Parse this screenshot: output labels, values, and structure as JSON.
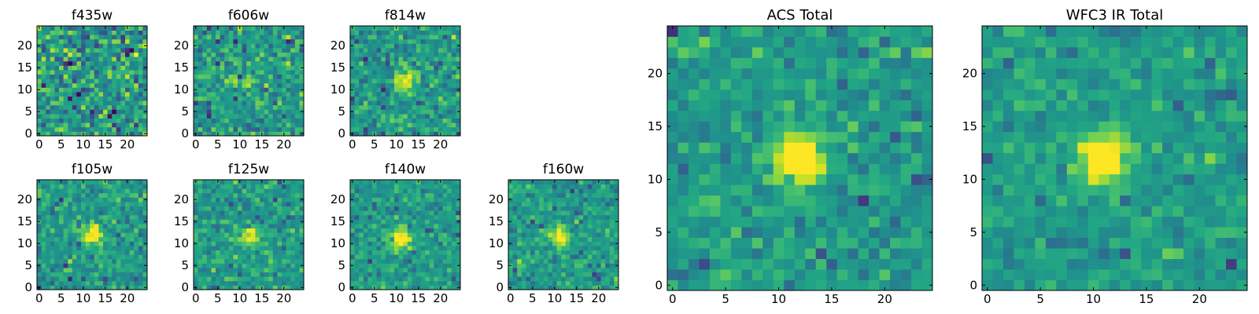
{
  "chart_data": [
    {
      "type": "heatmap",
      "title": "f435w",
      "xticks": [
        0,
        5,
        10,
        15,
        20
      ],
      "yticks": [
        0,
        5,
        10,
        15,
        20
      ],
      "grid_size": 25,
      "xlim": [
        0,
        25
      ],
      "ylim": [
        0,
        25
      ],
      "grid": false,
      "colormap": "viridis",
      "source_center": [
        12,
        13
      ],
      "source_strength": 0.05,
      "noise": 0.95
    },
    {
      "type": "heatmap",
      "title": "f606w",
      "xticks": [
        0,
        5,
        10,
        15,
        20
      ],
      "yticks": [
        0,
        5,
        10,
        15,
        20
      ],
      "grid_size": 25,
      "xlim": [
        0,
        25
      ],
      "ylim": [
        0,
        25
      ],
      "grid": false,
      "colormap": "viridis",
      "source_center": [
        12,
        12
      ],
      "source_strength": 0.25,
      "noise": 0.8
    },
    {
      "type": "heatmap",
      "title": "f814w",
      "xticks": [
        0,
        5,
        10,
        15,
        20
      ],
      "yticks": [
        0,
        5,
        10,
        15,
        20
      ],
      "grid_size": 25,
      "xlim": [
        0,
        25
      ],
      "ylim": [
        0,
        25
      ],
      "grid": false,
      "colormap": "viridis",
      "source_center": [
        12,
        12
      ],
      "source_strength": 0.4,
      "noise": 0.7
    },
    {
      "type": "heatmap",
      "title": "f105w",
      "xticks": [
        0,
        5,
        10,
        15,
        20
      ],
      "yticks": [
        0,
        5,
        10,
        15,
        20
      ],
      "grid_size": 25,
      "xlim": [
        0,
        25
      ],
      "ylim": [
        0,
        25
      ],
      "grid": false,
      "colormap": "viridis",
      "source_center": [
        12,
        12
      ],
      "source_strength": 0.5,
      "noise": 0.6
    },
    {
      "type": "heatmap",
      "title": "f125w",
      "xticks": [
        0,
        5,
        10,
        15,
        20
      ],
      "yticks": [
        0,
        5,
        10,
        15,
        20
      ],
      "grid_size": 25,
      "xlim": [
        0,
        25
      ],
      "ylim": [
        0,
        25
      ],
      "grid": false,
      "colormap": "viridis",
      "source_center": [
        12,
        12
      ],
      "source_strength": 0.5,
      "noise": 0.6
    },
    {
      "type": "heatmap",
      "title": "f140w",
      "xticks": [
        0,
        5,
        10,
        15,
        20
      ],
      "yticks": [
        0,
        5,
        10,
        15,
        20
      ],
      "grid_size": 25,
      "xlim": [
        0,
        25
      ],
      "ylim": [
        0,
        25
      ],
      "grid": false,
      "colormap": "viridis",
      "source_center": [
        11,
        11
      ],
      "source_strength": 0.55,
      "noise": 0.55
    },
    {
      "type": "heatmap",
      "title": "f160w",
      "xticks": [
        0,
        5,
        10,
        15,
        20
      ],
      "yticks": [
        0,
        5,
        10,
        15,
        20
      ],
      "grid_size": 25,
      "xlim": [
        0,
        25
      ],
      "ylim": [
        0,
        25
      ],
      "grid": false,
      "colormap": "viridis",
      "source_center": [
        11,
        12
      ],
      "source_strength": 0.55,
      "noise": 0.55
    },
    {
      "type": "heatmap",
      "title": "ACS Total",
      "xticks": [
        0,
        5,
        10,
        15,
        20
      ],
      "yticks": [
        0,
        5,
        10,
        15,
        20
      ],
      "grid_size": 25,
      "xlim": [
        0,
        25
      ],
      "ylim": [
        0,
        25
      ],
      "grid": false,
      "colormap": "viridis",
      "source_center": [
        12,
        12
      ],
      "source_strength": 0.7,
      "noise": 0.55
    },
    {
      "type": "heatmap",
      "title": "WFC3 IR Total",
      "xticks": [
        0,
        5,
        10,
        15,
        20
      ],
      "yticks": [
        0,
        5,
        10,
        15,
        20
      ],
      "grid_size": 25,
      "xlim": [
        0,
        25
      ],
      "ylim": [
        0,
        25
      ],
      "grid": false,
      "colormap": "viridis",
      "source_center": [
        11,
        12
      ],
      "source_strength": 0.75,
      "noise": 0.45
    }
  ]
}
